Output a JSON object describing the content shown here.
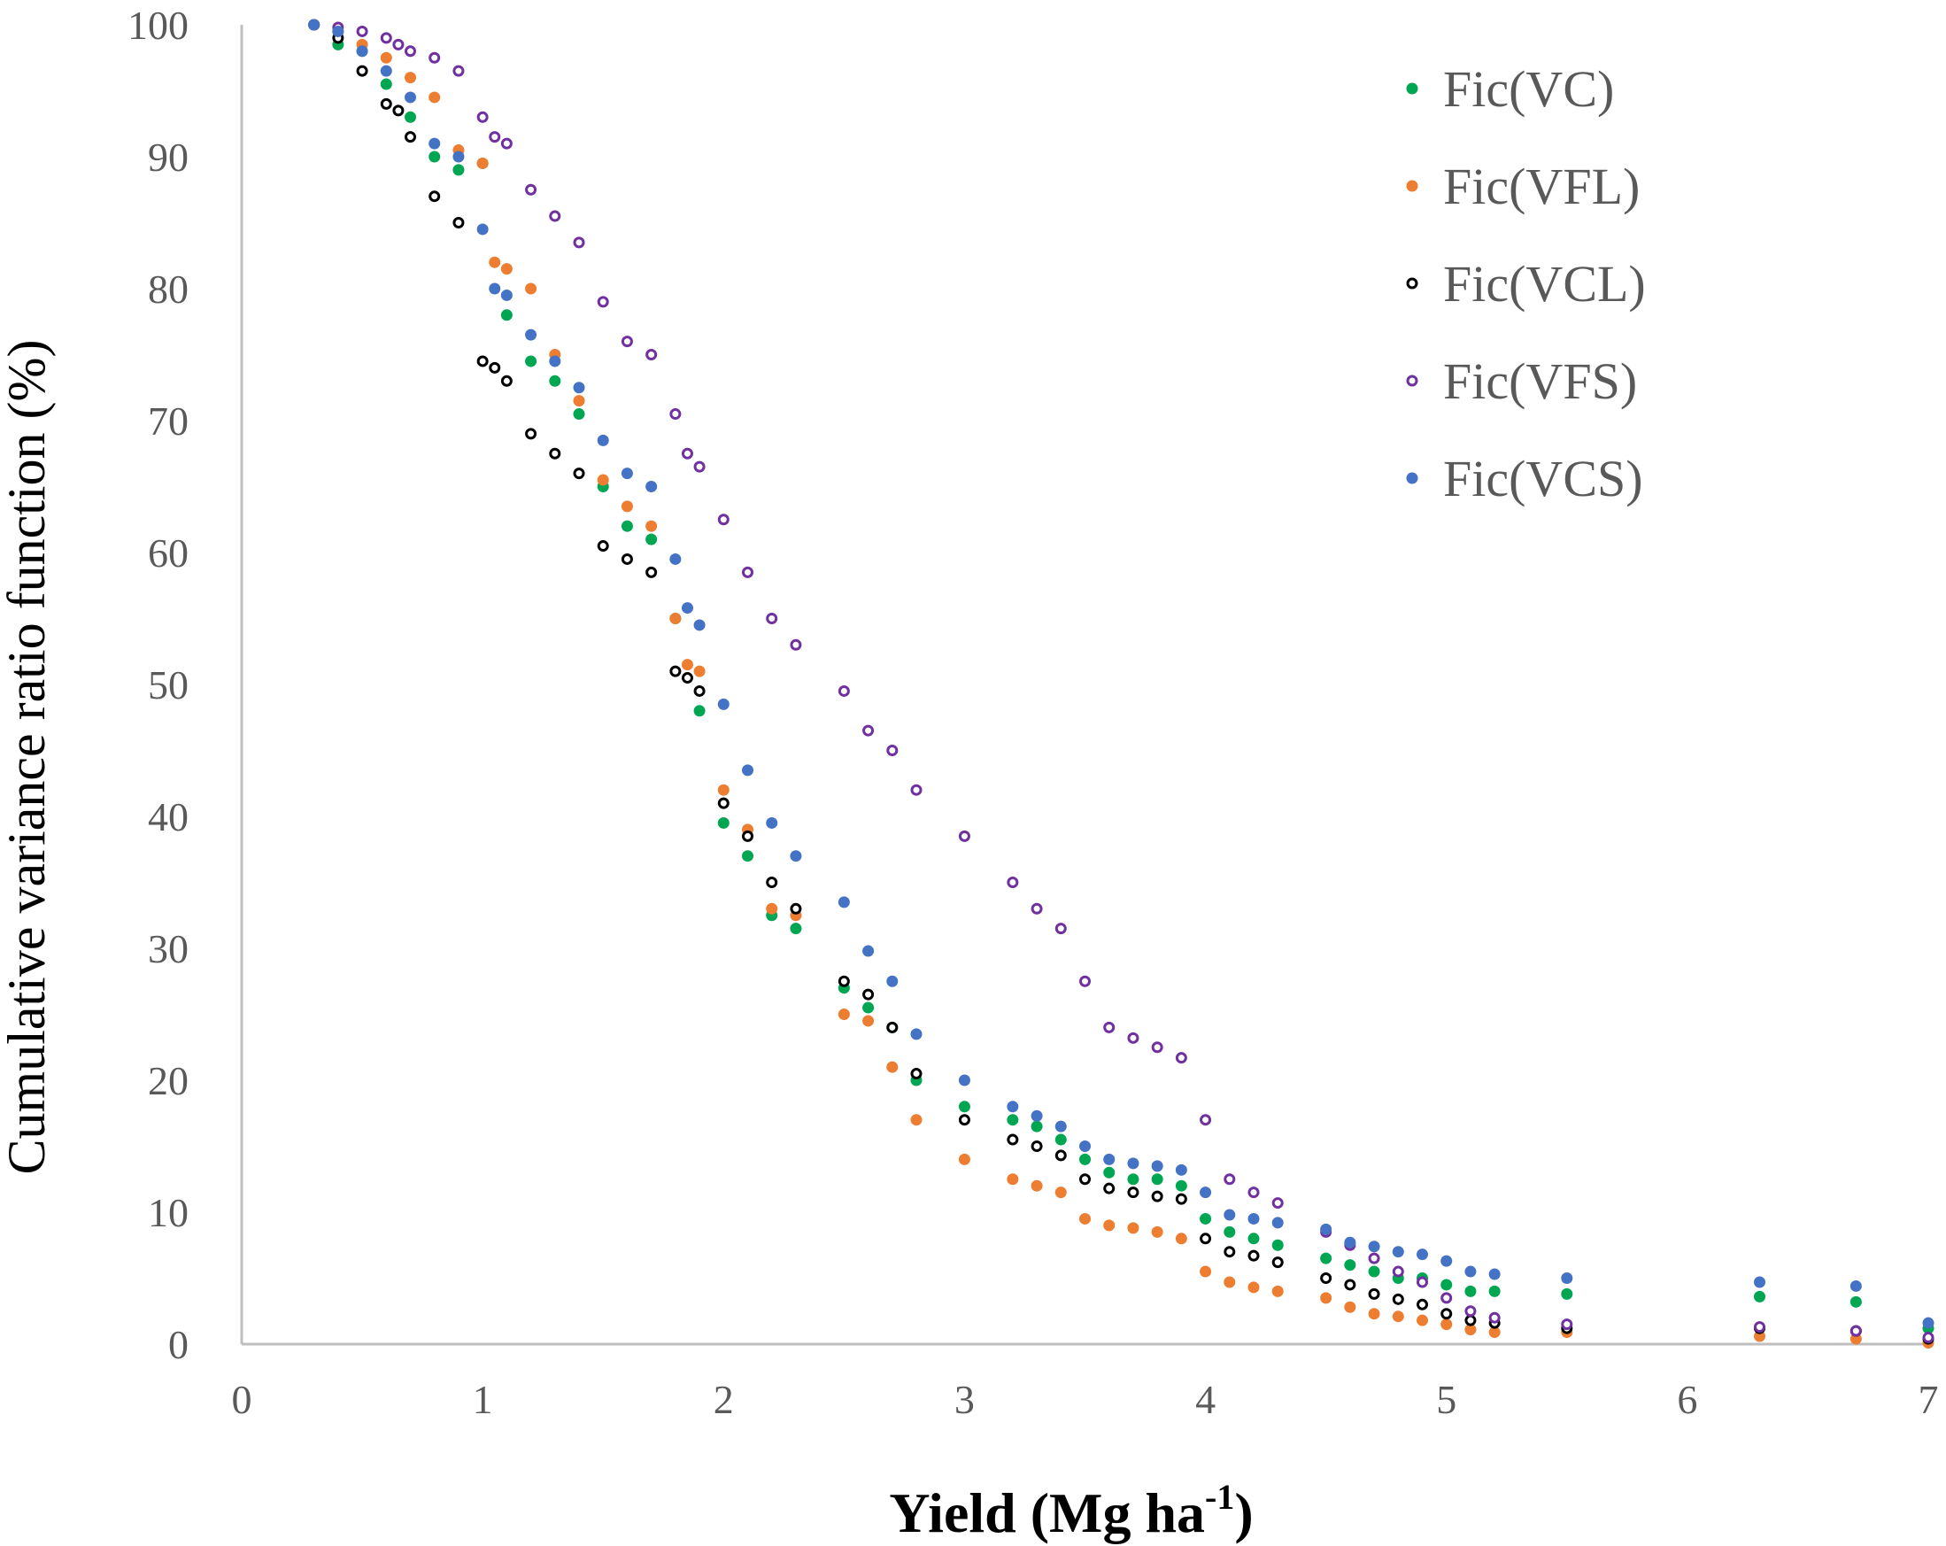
{
  "chart_data": {
    "type": "scatter",
    "title": "",
    "xlabel": "Yield (Mg ha-1)",
    "xlabel_main": "Yield (Mg ha",
    "xlabel_sup": "-1",
    "xlabel_close": ")",
    "ylabel": "Cumulative variance ratio function (%)",
    "xlim": [
      0,
      7
    ],
    "ylim": [
      0,
      100
    ],
    "xticks": [
      "0",
      "1",
      "2",
      "3",
      "4",
      "5",
      "6",
      "7"
    ],
    "yticks": [
      "0",
      "10",
      "20",
      "30",
      "40",
      "50",
      "60",
      "70",
      "80",
      "90",
      "100"
    ],
    "legend_position": "top-right",
    "series": [
      {
        "name": "Fic(VC)",
        "color": "#00a651",
        "marker": "filled",
        "points": [
          [
            0.3,
            100
          ],
          [
            0.4,
            98.5
          ],
          [
            0.5,
            98
          ],
          [
            0.6,
            95.5
          ],
          [
            0.7,
            93
          ],
          [
            0.8,
            90
          ],
          [
            0.9,
            89
          ],
          [
            1.0,
            89.5
          ],
          [
            1.1,
            78
          ],
          [
            1.2,
            74.5
          ],
          [
            1.3,
            73
          ],
          [
            1.4,
            70.5
          ],
          [
            1.5,
            65
          ],
          [
            1.6,
            62
          ],
          [
            1.7,
            61
          ],
          [
            1.8,
            55
          ],
          [
            1.9,
            48
          ],
          [
            2.0,
            39.5
          ],
          [
            2.1,
            37
          ],
          [
            2.2,
            32.5
          ],
          [
            2.3,
            31.5
          ],
          [
            2.5,
            27
          ],
          [
            2.6,
            25.5
          ],
          [
            2.7,
            24
          ],
          [
            2.8,
            20
          ],
          [
            3.0,
            18
          ],
          [
            3.2,
            17
          ],
          [
            3.3,
            16.5
          ],
          [
            3.4,
            15.5
          ],
          [
            3.5,
            14
          ],
          [
            3.6,
            13
          ],
          [
            3.7,
            12.5
          ],
          [
            3.8,
            12.5
          ],
          [
            3.9,
            12
          ],
          [
            4.0,
            9.5
          ],
          [
            4.1,
            8.5
          ],
          [
            4.2,
            8
          ],
          [
            4.3,
            7.5
          ],
          [
            4.5,
            6.5
          ],
          [
            4.6,
            6
          ],
          [
            4.7,
            5.5
          ],
          [
            4.8,
            5
          ],
          [
            4.9,
            5
          ],
          [
            5.0,
            4.5
          ],
          [
            5.1,
            4
          ],
          [
            5.2,
            4
          ],
          [
            5.5,
            3.8
          ],
          [
            6.3,
            3.6
          ],
          [
            6.7,
            3.2
          ],
          [
            7.0,
            1.2
          ]
        ]
      },
      {
        "name": "Fic(VFL)",
        "color": "#ed7d31",
        "marker": "filled",
        "points": [
          [
            0.3,
            100
          ],
          [
            0.4,
            99.5
          ],
          [
            0.5,
            98.5
          ],
          [
            0.6,
            97.5
          ],
          [
            0.7,
            96
          ],
          [
            0.8,
            94.5
          ],
          [
            0.9,
            90.5
          ],
          [
            1.0,
            89.5
          ],
          [
            1.05,
            82
          ],
          [
            1.1,
            81.5
          ],
          [
            1.2,
            80
          ],
          [
            1.3,
            75
          ],
          [
            1.4,
            71.5
          ],
          [
            1.5,
            65.5
          ],
          [
            1.6,
            63.5
          ],
          [
            1.7,
            62
          ],
          [
            1.8,
            55
          ],
          [
            1.85,
            51.5
          ],
          [
            1.9,
            51
          ],
          [
            2.0,
            42
          ],
          [
            2.1,
            39
          ],
          [
            2.2,
            33
          ],
          [
            2.3,
            32.5
          ],
          [
            2.5,
            25
          ],
          [
            2.6,
            24.5
          ],
          [
            2.7,
            21
          ],
          [
            2.8,
            17
          ],
          [
            3.0,
            14
          ],
          [
            3.2,
            12.5
          ],
          [
            3.3,
            12
          ],
          [
            3.4,
            11.5
          ],
          [
            3.5,
            9.5
          ],
          [
            3.6,
            9
          ],
          [
            3.7,
            8.8
          ],
          [
            3.8,
            8.5
          ],
          [
            3.9,
            8
          ],
          [
            4.0,
            5.5
          ],
          [
            4.1,
            4.7
          ],
          [
            4.2,
            4.3
          ],
          [
            4.3,
            4
          ],
          [
            4.5,
            3.5
          ],
          [
            4.6,
            2.8
          ],
          [
            4.7,
            2.3
          ],
          [
            4.8,
            2.1
          ],
          [
            4.9,
            1.8
          ],
          [
            5.0,
            1.5
          ],
          [
            5.1,
            1.1
          ],
          [
            5.2,
            0.9
          ],
          [
            5.5,
            0.9
          ],
          [
            6.3,
            0.6
          ],
          [
            6.7,
            0.4
          ],
          [
            7.0,
            0.1
          ]
        ]
      },
      {
        "name": "Fic(VCL)",
        "color": "#000000",
        "marker": "hollow",
        "points": [
          [
            0.3,
            100
          ],
          [
            0.4,
            99
          ],
          [
            0.5,
            96.5
          ],
          [
            0.6,
            94
          ],
          [
            0.65,
            93.5
          ],
          [
            0.7,
            91.5
          ],
          [
            0.8,
            87
          ],
          [
            0.9,
            85
          ],
          [
            1.0,
            74.5
          ],
          [
            1.05,
            74
          ],
          [
            1.1,
            73
          ],
          [
            1.2,
            69
          ],
          [
            1.3,
            67.5
          ],
          [
            1.4,
            66
          ],
          [
            1.5,
            60.5
          ],
          [
            1.6,
            59.5
          ],
          [
            1.7,
            58.5
          ],
          [
            1.8,
            51
          ],
          [
            1.85,
            50.5
          ],
          [
            1.9,
            49.5
          ],
          [
            2.0,
            41
          ],
          [
            2.1,
            38.5
          ],
          [
            2.2,
            35
          ],
          [
            2.3,
            33
          ],
          [
            2.5,
            27.5
          ],
          [
            2.6,
            26.5
          ],
          [
            2.7,
            24
          ],
          [
            2.8,
            20.5
          ],
          [
            3.0,
            17
          ],
          [
            3.2,
            15.5
          ],
          [
            3.3,
            15
          ],
          [
            3.4,
            14.3
          ],
          [
            3.5,
            12.5
          ],
          [
            3.6,
            11.8
          ],
          [
            3.7,
            11.5
          ],
          [
            3.8,
            11.2
          ],
          [
            3.9,
            11
          ],
          [
            4.0,
            8
          ],
          [
            4.1,
            7
          ],
          [
            4.2,
            6.7
          ],
          [
            4.3,
            6.2
          ],
          [
            4.5,
            5
          ],
          [
            4.6,
            4.5
          ],
          [
            4.7,
            3.8
          ],
          [
            4.8,
            3.4
          ],
          [
            4.9,
            3
          ],
          [
            5.0,
            2.3
          ],
          [
            5.1,
            1.8
          ],
          [
            5.2,
            1.6
          ],
          [
            5.5,
            1.2
          ],
          [
            6.3,
            1.2
          ],
          [
            6.7,
            1
          ],
          [
            7.0,
            0.4
          ]
        ]
      },
      {
        "name": "Fic(VFS)",
        "color": "#7030a0",
        "marker": "hollow",
        "points": [
          [
            0.3,
            100
          ],
          [
            0.4,
            99.8
          ],
          [
            0.5,
            99.5
          ],
          [
            0.6,
            99
          ],
          [
            0.65,
            98.5
          ],
          [
            0.7,
            98
          ],
          [
            0.8,
            97.5
          ],
          [
            0.9,
            96.5
          ],
          [
            1.0,
            93
          ],
          [
            1.05,
            91.5
          ],
          [
            1.1,
            91
          ],
          [
            1.2,
            87.5
          ],
          [
            1.3,
            85.5
          ],
          [
            1.4,
            83.5
          ],
          [
            1.5,
            79
          ],
          [
            1.6,
            76
          ],
          [
            1.7,
            75
          ],
          [
            1.8,
            70.5
          ],
          [
            1.85,
            67.5
          ],
          [
            1.9,
            66.5
          ],
          [
            2.0,
            62.5
          ],
          [
            2.1,
            58.5
          ],
          [
            2.2,
            55
          ],
          [
            2.3,
            53
          ],
          [
            2.5,
            49.5
          ],
          [
            2.6,
            46.5
          ],
          [
            2.7,
            45
          ],
          [
            2.8,
            42
          ],
          [
            3.0,
            38.5
          ],
          [
            3.2,
            35
          ],
          [
            3.3,
            33
          ],
          [
            3.4,
            31.5
          ],
          [
            3.5,
            27.5
          ],
          [
            3.6,
            24
          ],
          [
            3.7,
            23.2
          ],
          [
            3.8,
            22.5
          ],
          [
            3.9,
            21.7
          ],
          [
            4.0,
            17
          ],
          [
            4.1,
            12.5
          ],
          [
            4.2,
            11.5
          ],
          [
            4.3,
            10.7
          ],
          [
            4.5,
            8.5
          ],
          [
            4.6,
            7.5
          ],
          [
            4.7,
            6.5
          ],
          [
            4.8,
            5.5
          ],
          [
            4.9,
            4.7
          ],
          [
            5.0,
            3.5
          ],
          [
            5.1,
            2.5
          ],
          [
            5.2,
            2
          ],
          [
            5.5,
            1.5
          ],
          [
            6.3,
            1.3
          ],
          [
            6.7,
            1
          ],
          [
            7.0,
            0.5
          ]
        ]
      },
      {
        "name": "Fic(VCS)",
        "color": "#4472c4",
        "marker": "filled",
        "points": [
          [
            0.3,
            100
          ],
          [
            0.4,
            99.5
          ],
          [
            0.5,
            98
          ],
          [
            0.6,
            96.5
          ],
          [
            0.7,
            94.5
          ],
          [
            0.8,
            91
          ],
          [
            0.9,
            90
          ],
          [
            1.0,
            84.5
          ],
          [
            1.05,
            80
          ],
          [
            1.1,
            79.5
          ],
          [
            1.2,
            76.5
          ],
          [
            1.3,
            74.5
          ],
          [
            1.4,
            72.5
          ],
          [
            1.5,
            68.5
          ],
          [
            1.6,
            66
          ],
          [
            1.7,
            65
          ],
          [
            1.8,
            59.5
          ],
          [
            1.85,
            55.8
          ],
          [
            1.9,
            54.5
          ],
          [
            2.0,
            48.5
          ],
          [
            2.1,
            43.5
          ],
          [
            2.2,
            39.5
          ],
          [
            2.3,
            37
          ],
          [
            2.5,
            33.5
          ],
          [
            2.6,
            29.8
          ],
          [
            2.7,
            27.5
          ],
          [
            2.8,
            23.5
          ],
          [
            3.0,
            20
          ],
          [
            3.2,
            18
          ],
          [
            3.3,
            17.3
          ],
          [
            3.4,
            16.5
          ],
          [
            3.5,
            15
          ],
          [
            3.6,
            14
          ],
          [
            3.7,
            13.7
          ],
          [
            3.8,
            13.5
          ],
          [
            3.9,
            13.2
          ],
          [
            4.0,
            11.5
          ],
          [
            4.1,
            9.8
          ],
          [
            4.2,
            9.5
          ],
          [
            4.3,
            9.2
          ],
          [
            4.5,
            8.7
          ],
          [
            4.6,
            7.7
          ],
          [
            4.7,
            7.4
          ],
          [
            4.8,
            7
          ],
          [
            4.9,
            6.8
          ],
          [
            5.0,
            6.3
          ],
          [
            5.1,
            5.5
          ],
          [
            5.2,
            5.3
          ],
          [
            5.5,
            5
          ],
          [
            6.3,
            4.7
          ],
          [
            6.7,
            4.4
          ],
          [
            7.0,
            1.6
          ]
        ]
      }
    ]
  }
}
